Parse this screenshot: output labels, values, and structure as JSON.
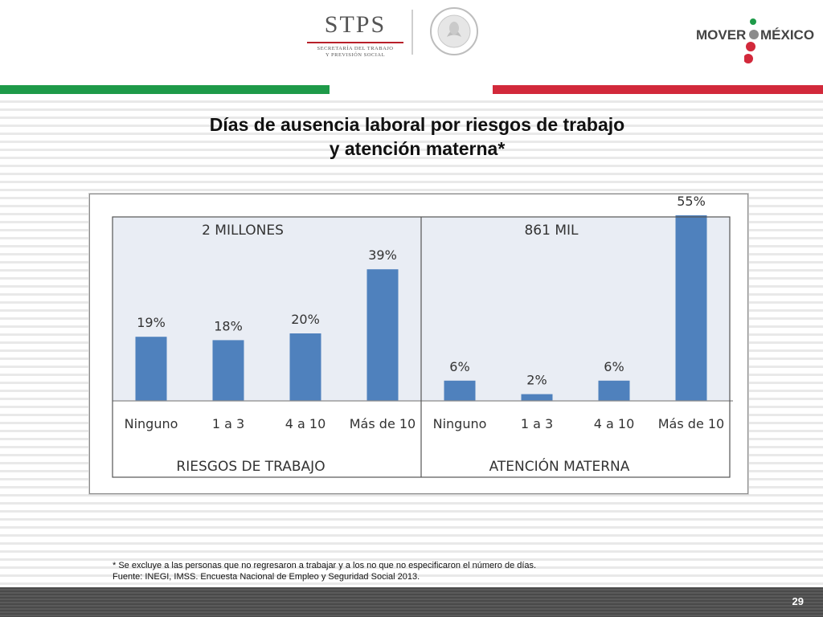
{
  "header": {
    "stps_logo": "STPS",
    "stps_subtitle_line1": "SECRETARÍA DEL TRABAJO",
    "stps_subtitle_line2": "Y PREVISIÓN SOCIAL",
    "seal_text": "ESTADOS UNIDOS MEXICANOS",
    "campaign_logo_left": "MOVER",
    "campaign_logo_right": "MÉXICO",
    "colors": {
      "green": "#1e9a49",
      "red": "#d2293b"
    }
  },
  "title": {
    "line1": "Días de ausencia laboral por riesgos de trabajo",
    "line2": "y atención materna*"
  },
  "chart_data": [
    {
      "type": "bar",
      "title": "2 MILLONES",
      "xlabel": "RIESGOS DE TRABAJO",
      "categories": [
        "Ninguno",
        "1 a 3",
        "4 a 10",
        "Más de 10"
      ],
      "values": [
        19,
        18,
        20,
        39
      ],
      "labels": [
        "19%",
        "18%",
        "20%",
        "39%"
      ],
      "unit": "%",
      "bar_color": "#4f81bd",
      "background": "#e9edf4"
    },
    {
      "type": "bar",
      "title": "861 MIL",
      "xlabel": "ATENCIÓN MATERNA",
      "categories": [
        "Ninguno",
        "1 a 3",
        "4 a 10",
        "Más de 10"
      ],
      "values": [
        6,
        2,
        6,
        55
      ],
      "labels": [
        "6%",
        "2%",
        "6%",
        "55%"
      ],
      "unit": "%",
      "bar_color": "#4f81bd",
      "background": "#e9edf4"
    }
  ],
  "footnote": {
    "line1": "* Se excluye a las personas que no regresaron a trabajar y a los no que no especificaron el número de días.",
    "line2": "Fuente: INEGI, IMSS. Encuesta Nacional de Empleo y Seguridad Social 2013."
  },
  "footer": {
    "page_number": "29"
  }
}
